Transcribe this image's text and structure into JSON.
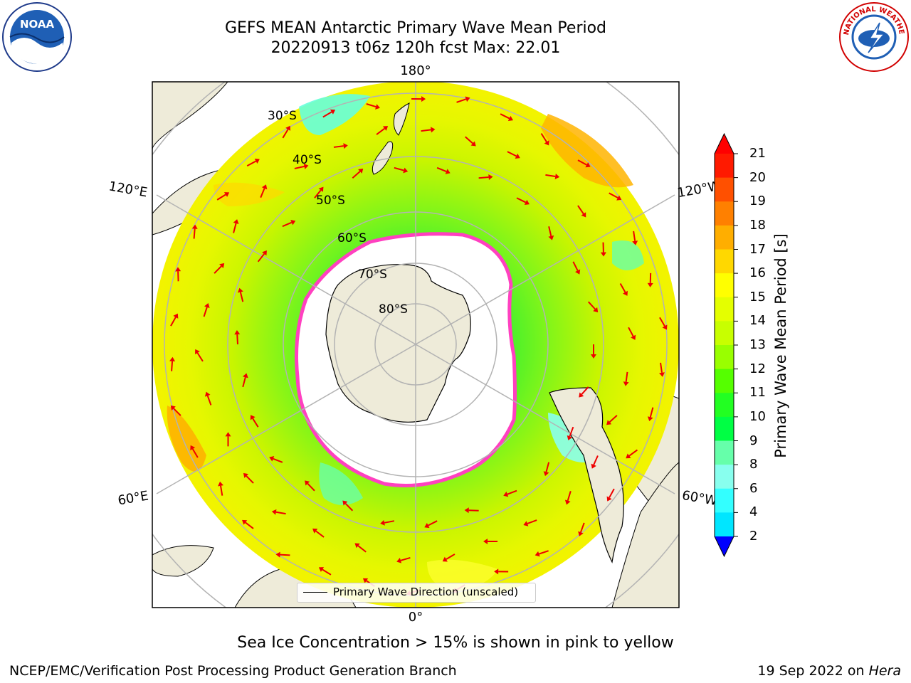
{
  "header": {
    "title_line1": "GEFS MEAN Antarctic Primary Wave Mean Period",
    "title_line2": "20220913 t06z 120h fcst   Max: 22.01"
  },
  "logos": {
    "left": "NOAA",
    "right": "NATIONAL WEATHER SERVICE"
  },
  "map": {
    "projection": "south-polar-stereographic",
    "lon_labels": {
      "top": "180°",
      "bottom": "0°",
      "left_upper": "120°E",
      "left_lower": "60°E",
      "right_upper": "120°W",
      "right_lower": "60°W"
    },
    "lat_labels": [
      "30°S",
      "40°S",
      "50°S",
      "60°S",
      "70°S",
      "80°S"
    ],
    "colors": {
      "land": "#eeebd9",
      "ice_edge": "#ff40c0",
      "arrow": "#ee0000",
      "grid": "#b3b3b3"
    }
  },
  "legend": {
    "label": "Primary Wave Direction (unscaled)"
  },
  "colorbar": {
    "label": "Primary Wave Mean Period [s]",
    "ticks": [
      "21",
      "20",
      "19",
      "18",
      "17",
      "16",
      "15",
      "14",
      "13",
      "12",
      "11",
      "10",
      "9",
      "8",
      "6",
      "4",
      "2"
    ],
    "colors": [
      "#ff1a00",
      "#ff5000",
      "#ff8000",
      "#ffae00",
      "#ffd800",
      "#ffff00",
      "#e4ff00",
      "#c8ff00",
      "#99ff00",
      "#55ff00",
      "#22ff22",
      "#00ff44",
      "#66ffaa",
      "#88ffee",
      "#33ffff",
      "#00e6ff",
      "#00b4ff",
      "#0060ff"
    ],
    "over_color": "#ff0000",
    "under_color": "#0000ff"
  },
  "caption": "Sea Ice Concentration > 15% is shown in pink to yellow",
  "footer": {
    "left": "NCEP/EMC/Verification Post Processing Product Generation Branch",
    "right_date": "19 Sep 2022 on ",
    "right_host": "Hera"
  }
}
